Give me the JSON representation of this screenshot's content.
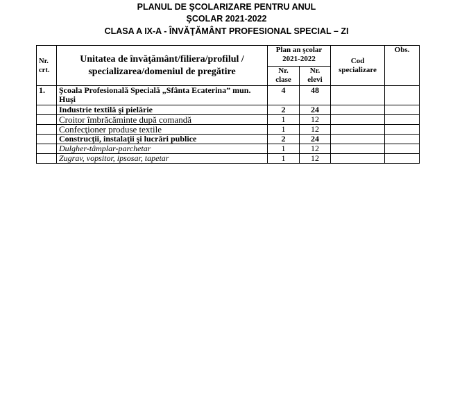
{
  "title": [
    "PLANUL DE ŞCOLARIZARE PENTRU ANUL",
    "ŞCOLAR  2021-2022",
    "CLASA A IX-A - ÎNVĂŢĂMÂNT PROFESIONAL SPECIAL  – ZI"
  ],
  "headers": {
    "nr": "Nr. crt.",
    "unit": "Unitatea de învăţământ/filiera/profilul / specializarea/domeniul de pregătire",
    "plan": "Plan an şcolar 2021-2022",
    "clase": "Nr. clase",
    "elevi": "Nr. elevi",
    "cod": "Cod specializare",
    "obs": "Obs."
  },
  "rows": [
    {
      "nr": "1.",
      "name": "Şcoala Profesională Specială „Sfânta Ecaterina” mun. Huşi",
      "clase": "4",
      "elevi": "48",
      "style": "bold"
    },
    {
      "nr": "",
      "name": "Industrie textilă şi pielărie",
      "clase": "2",
      "elevi": "24",
      "style": "bold"
    },
    {
      "nr": "",
      "name": "Croitor îmbrăcăminte după comandă",
      "clase": "1",
      "elevi": "12",
      "style": "normal"
    },
    {
      "nr": "",
      "name": "Confecţioner produse textile",
      "clase": "1",
      "elevi": "12",
      "style": "normal"
    },
    {
      "nr": "",
      "name": "Construcţii, instalaţii şi lucrări publice",
      "clase": "2",
      "elevi": "24",
      "style": "bold"
    },
    {
      "nr": "",
      "name": "Dulgher-tâmplar-parchetar",
      "clase": "1",
      "elevi": "12",
      "style": "italic"
    },
    {
      "nr": "",
      "name": "Zugrav, vopsitor, ipsosar, tapetar",
      "clase": "1",
      "elevi": "12",
      "style": "italic"
    }
  ]
}
